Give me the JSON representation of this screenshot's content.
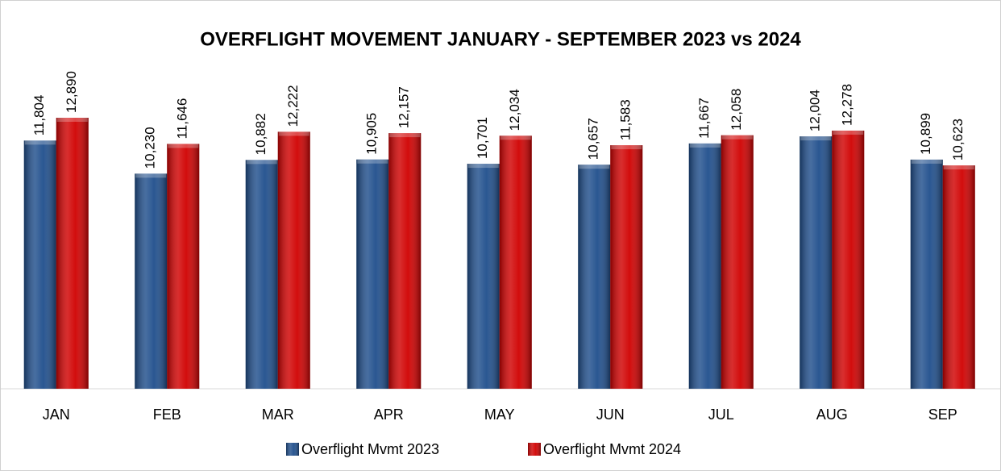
{
  "chart_data": {
    "type": "bar",
    "title": "OVERFLIGHT MOVEMENT JANUARY - SEPTEMBER 2023 vs 2024",
    "categories": [
      "JAN",
      "FEB",
      "MAR",
      "APR",
      "MAY",
      "JUN",
      "JUL",
      "AUG",
      "SEP"
    ],
    "series": [
      {
        "name": "Overflight Mvmt 2023",
        "color": "#1f4e8c",
        "values": [
          11804,
          10230,
          10882,
          10905,
          10701,
          10657,
          11667,
          12004,
          10899
        ],
        "value_labels": [
          "11,804",
          "10,230",
          "10,882",
          "10,905",
          "10,701",
          "10,657",
          "11,667",
          "12,004",
          "10,899"
        ]
      },
      {
        "name": "Overflight Mvmt 2024",
        "color": "#d00000",
        "values": [
          12890,
          11646,
          12222,
          12157,
          12034,
          11583,
          12058,
          12278,
          10623
        ],
        "value_labels": [
          "12,890",
          "11,646",
          "12,222",
          "12,157",
          "12,034",
          "11,583",
          "12,058",
          "12,278",
          "10,623"
        ]
      }
    ],
    "legend": "bottom"
  }
}
